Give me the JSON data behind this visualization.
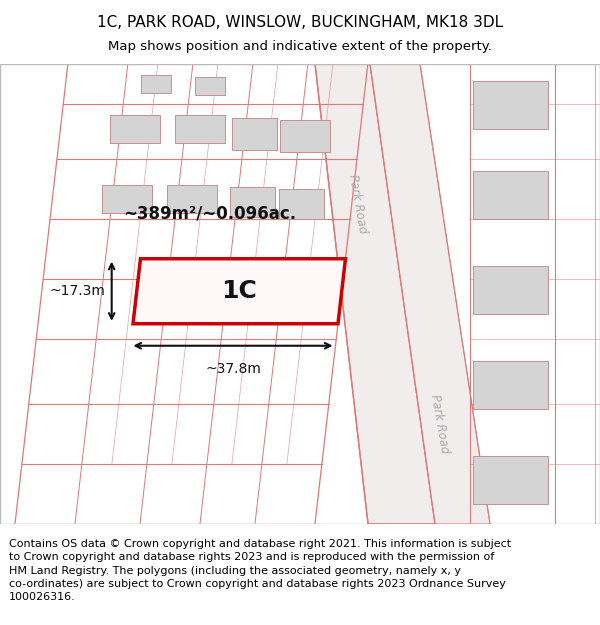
{
  "title": "1C, PARK ROAD, WINSLOW, BUCKINGHAM, MK18 3DL",
  "subtitle": "Map shows position and indicative extent of the property.",
  "footer": "Contains OS data © Crown copyright and database right 2021. This information is subject\nto Crown copyright and database rights 2023 and is reproduced with the permission of\nHM Land Registry. The polygons (including the associated geometry, namely x, y\nco-ordinates) are subject to Crown copyright and database rights 2023 Ordnance Survey\n100026316.",
  "label_1c": "1C",
  "area_label": "~389m²/~0.096ac.",
  "dim_width": "~37.8m",
  "dim_height": "~17.3m",
  "road_label_1": "Park Road",
  "road_label_2": "Park Road",
  "title_fontsize": 11,
  "subtitle_fontsize": 9.5,
  "footer_fontsize": 8.0,
  "map_bg": "#fdf6f6",
  "plot_ec": "#e07878",
  "bld_fill": "#d4d4d4",
  "bld_ec": "#c89090",
  "road_fill": "#f2eded",
  "prop_ec": "#cc0000",
  "prop_fill": "#fff8f8"
}
